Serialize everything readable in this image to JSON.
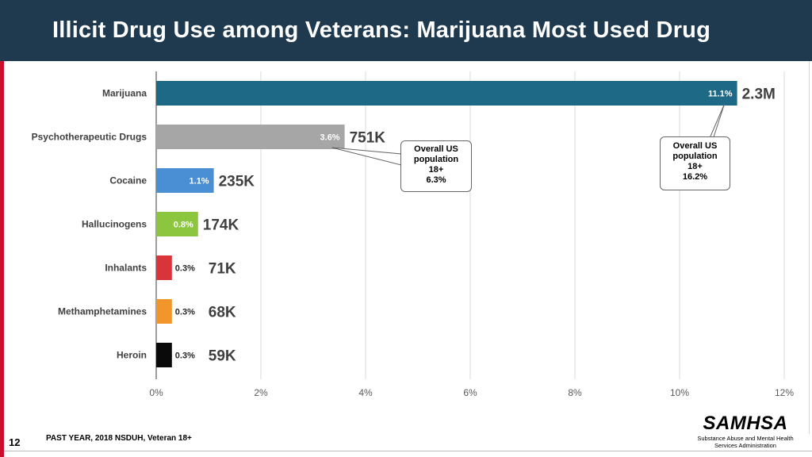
{
  "header": {
    "title": "Illicit Drug Use among Veterans: Marijuana Most Used Drug"
  },
  "footer": {
    "page_number": "12",
    "source": "PAST YEAR, 2018 NSDUH, Veteran 18+",
    "logo_text": "SAMHSA",
    "logo_subtitle_1": "Substance Abuse and Mental Health",
    "logo_subtitle_2": "Services Administration"
  },
  "colors": {
    "header_bg": "#1f3a4f",
    "accent_red": "#c8102e"
  },
  "chart_data": {
    "type": "bar",
    "orientation": "horizontal",
    "title": "Illicit Drug Use among Veterans: Marijuana Most Used Drug",
    "categories": [
      "Marijuana",
      "Psychotherapeutic Drugs",
      "Cocaine",
      "Hallucinogens",
      "Inhalants",
      "Methamphetamines",
      "Heroin"
    ],
    "values": [
      11.1,
      3.6,
      1.1,
      0.8,
      0.3,
      0.3,
      0.3
    ],
    "value_labels": [
      "11.1%",
      "3.6%",
      "1.1%",
      "0.8%",
      "0.3%",
      "0.3%",
      "0.3%"
    ],
    "counts": [
      "2.3M",
      "751K",
      "235K",
      "174K",
      "71K",
      "68K",
      "59K"
    ],
    "bar_colors": [
      "#1e6a86",
      "#a6a6a6",
      "#4a8fd4",
      "#8cc63f",
      "#d9343a",
      "#f0962a",
      "#0a0a0a"
    ],
    "xlim": [
      0,
      12
    ],
    "xticks": [
      0,
      2,
      4,
      6,
      8,
      10,
      12
    ],
    "xtick_labels": [
      "0%",
      "2%",
      "4%",
      "6%",
      "8%",
      "10%",
      "12%"
    ],
    "grid": true,
    "annotations": [
      {
        "lines": [
          "Overall US",
          "population",
          "18+",
          "6.3%"
        ],
        "points_to": "Psychotherapeutic Drugs"
      },
      {
        "lines": [
          "Overall US",
          "population",
          "18+",
          "16.2%"
        ],
        "points_to": "Marijuana"
      }
    ]
  }
}
